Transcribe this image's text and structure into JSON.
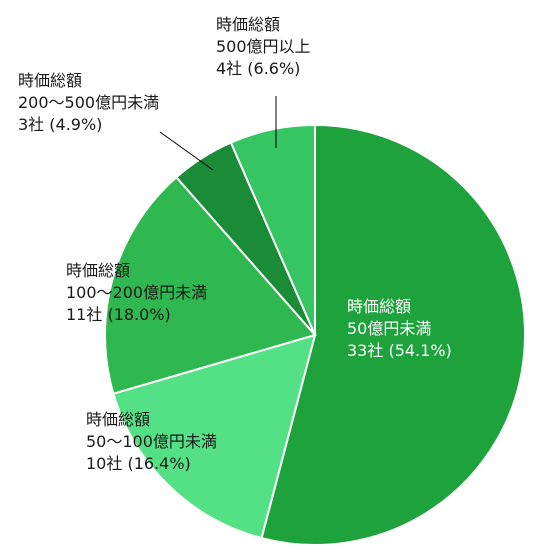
{
  "chart_data": {
    "type": "pie",
    "title": "",
    "start": "12 o'clock",
    "direction": "clockwise",
    "slices": [
      {
        "lines": [
          "時価総額",
          "50億円未満",
          "33社 (54.1%)"
        ],
        "count": 33,
        "percent": 54.1,
        "color": "#1ea23c",
        "label_color": "#ffffff"
      },
      {
        "lines": [
          "時価総額",
          "50～100億円未満",
          "10社 (16.4%)"
        ],
        "count": 10,
        "percent": 16.4,
        "color": "#54e084",
        "label_color": "#1a1a1a"
      },
      {
        "lines": [
          "時価総額",
          "100～200億円未満",
          "11社 (18.0%)"
        ],
        "count": 11,
        "percent": 18.0,
        "color": "#2eb84f",
        "label_color": "#1a1a1a"
      },
      {
        "lines": [
          "時価総額",
          "200～500億円未満",
          "3社 (4.9%)"
        ],
        "count": 3,
        "percent": 4.9,
        "color": "#1a8c38",
        "label_color": "#1a1a1a"
      },
      {
        "lines": [
          "時価総額",
          "500億円以上",
          "4社 (6.6%)"
        ],
        "count": 4,
        "percent": 6.6,
        "color": "#37c462",
        "label_color": "#1a1a1a"
      }
    ]
  }
}
